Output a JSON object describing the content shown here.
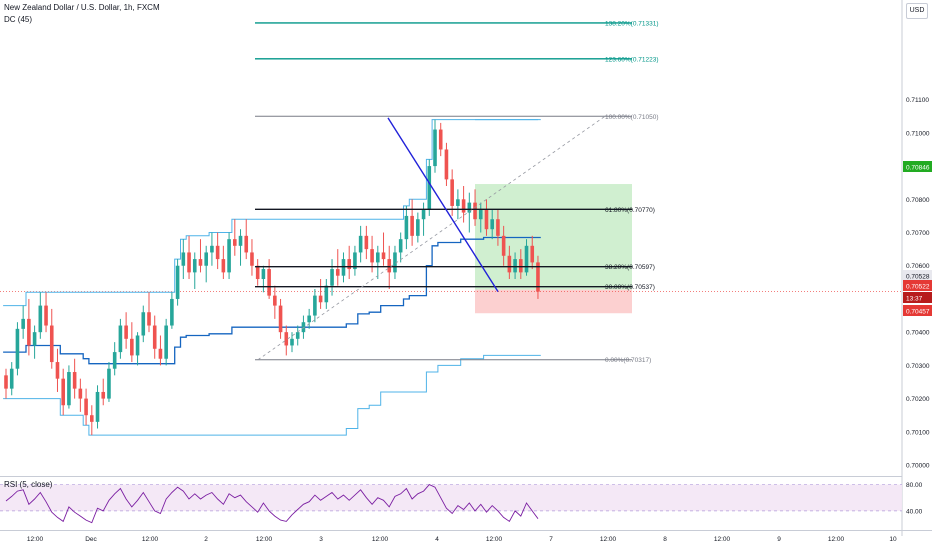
{
  "header": {
    "symbol_title": "New Zealand Dollar / U.S. Dollar, 1h, FXCM",
    "indicator": "DC (45)",
    "currency_button": "USD"
  },
  "rsi_panel": {
    "label": "RSI (5, close)",
    "levels": [
      "80.00",
      "40.00"
    ]
  },
  "colors": {
    "up_candle": "#26a69a",
    "down_candle": "#ef5350",
    "donchian_upper": "#4fb3e8",
    "donchian_basis": "#1565c0",
    "trendline": "#2121d9",
    "fib_extension": "#009688",
    "target_zone": "#c8ecc8",
    "stop_zone": "#fbc8c8",
    "rsi_line": "#7b1fa2",
    "rsi_band": "#f3e5f5"
  },
  "chart_data": {
    "type": "candlestick",
    "title": "New Zealand Dollar / U.S. Dollar, 1h, FXCM",
    "y_axis": {
      "ticks": [
        "0.71100",
        "0.71000",
        "0.70900",
        "0.70800",
        "0.70700",
        "0.70600",
        "0.70500",
        "0.70400",
        "0.70300",
        "0.70200",
        "0.70100",
        "0.70000"
      ],
      "range": [
        0.6997,
        0.714
      ]
    },
    "x_axis": {
      "ticks": [
        "12:00",
        "Dec",
        "12:00",
        "2",
        "12:00",
        "3",
        "12:00",
        "4",
        "12:00",
        "7",
        "12:00",
        "8",
        "12:00",
        "9",
        "12:00",
        "10"
      ]
    },
    "price_labels": [
      {
        "value": "0.70846",
        "color": "#22ab22"
      },
      {
        "value": "0.70528",
        "color": "#e8e8ee"
      },
      {
        "value": "0.70522",
        "color": "#e53935"
      },
      {
        "value": "13:37",
        "color": "#b71c1c"
      },
      {
        "value": "0.70457",
        "color": "#e53935"
      }
    ],
    "fib_levels": [
      {
        "label": "138.20%(0.71331)",
        "ratio": 1.382,
        "price": 0.71331
      },
      {
        "label": "123.60%(0.71223)",
        "ratio": 1.236,
        "price": 0.71223
      },
      {
        "label": "100.00%(0.71050)",
        "ratio": 1.0,
        "price": 0.7105
      },
      {
        "label": "61.80%(0.70770)",
        "ratio": 0.618,
        "price": 0.7077
      },
      {
        "label": "38.20%(0.70597)",
        "ratio": 0.382,
        "price": 0.70597
      },
      {
        "label": "30.00%(0.70537)",
        "ratio": 0.3,
        "price": 0.70537
      },
      {
        "label": "0.00%(0.70317)",
        "ratio": 0.0,
        "price": 0.70317
      }
    ],
    "position": {
      "entry": 0.70528,
      "target": 0.70846,
      "stop": 0.70457
    },
    "candles": [
      [
        0.7027,
        0.7029,
        0.702,
        0.7023
      ],
      [
        0.7023,
        0.7031,
        0.7021,
        0.7029
      ],
      [
        0.7029,
        0.7043,
        0.7027,
        0.7041
      ],
      [
        0.7041,
        0.7048,
        0.7038,
        0.7044
      ],
      [
        0.7044,
        0.705,
        0.7033,
        0.7036
      ],
      [
        0.7036,
        0.7042,
        0.7032,
        0.704
      ],
      [
        0.704,
        0.7052,
        0.7038,
        0.7048
      ],
      [
        0.7048,
        0.7052,
        0.704,
        0.7042
      ],
      [
        0.7042,
        0.7047,
        0.7029,
        0.7031
      ],
      [
        0.7031,
        0.7035,
        0.7022,
        0.7026
      ],
      [
        0.7026,
        0.7029,
        0.7015,
        0.7018
      ],
      [
        0.7018,
        0.703,
        0.7017,
        0.7028
      ],
      [
        0.7028,
        0.7032,
        0.702,
        0.7023
      ],
      [
        0.7023,
        0.7026,
        0.7016,
        0.702
      ],
      [
        0.702,
        0.7023,
        0.7012,
        0.7015
      ],
      [
        0.7015,
        0.7018,
        0.7009,
        0.7013
      ],
      [
        0.7013,
        0.7024,
        0.7011,
        0.7022
      ],
      [
        0.7022,
        0.7026,
        0.7018,
        0.702
      ],
      [
        0.702,
        0.7031,
        0.7019,
        0.7029
      ],
      [
        0.7029,
        0.7037,
        0.7027,
        0.7034
      ],
      [
        0.7034,
        0.7044,
        0.7032,
        0.7042
      ],
      [
        0.7042,
        0.7046,
        0.7035,
        0.7038
      ],
      [
        0.7038,
        0.7043,
        0.7031,
        0.7033
      ],
      [
        0.7033,
        0.704,
        0.703,
        0.7039
      ],
      [
        0.7039,
        0.7048,
        0.7037,
        0.7046
      ],
      [
        0.7046,
        0.7052,
        0.704,
        0.7042
      ],
      [
        0.7042,
        0.7045,
        0.7032,
        0.7035
      ],
      [
        0.7035,
        0.7039,
        0.703,
        0.7032
      ],
      [
        0.7032,
        0.7044,
        0.703,
        0.7042
      ],
      [
        0.7042,
        0.7052,
        0.7041,
        0.705
      ],
      [
        0.705,
        0.7062,
        0.7048,
        0.706
      ],
      [
        0.706,
        0.7068,
        0.7056,
        0.7064
      ],
      [
        0.7064,
        0.7069,
        0.7056,
        0.7058
      ],
      [
        0.7058,
        0.7064,
        0.7053,
        0.7062
      ],
      [
        0.7062,
        0.7068,
        0.7058,
        0.706
      ],
      [
        0.706,
        0.7066,
        0.7055,
        0.7064
      ],
      [
        0.7064,
        0.707,
        0.706,
        0.7066
      ],
      [
        0.7066,
        0.707,
        0.7059,
        0.7062
      ],
      [
        0.7062,
        0.7066,
        0.7056,
        0.7058
      ],
      [
        0.7058,
        0.707,
        0.7056,
        0.7068
      ],
      [
        0.7068,
        0.7074,
        0.7063,
        0.7066
      ],
      [
        0.7066,
        0.7071,
        0.706,
        0.7069
      ],
      [
        0.7069,
        0.7074,
        0.7062,
        0.7064
      ],
      [
        0.7064,
        0.7068,
        0.7057,
        0.706
      ],
      [
        0.706,
        0.7062,
        0.7054,
        0.7056
      ],
      [
        0.7056,
        0.706,
        0.7052,
        0.7059
      ],
      [
        0.7059,
        0.7062,
        0.705,
        0.7051
      ],
      [
        0.7051,
        0.7054,
        0.7044,
        0.7048
      ],
      [
        0.7048,
        0.705,
        0.7038,
        0.704
      ],
      [
        0.704,
        0.7042,
        0.7033,
        0.7036
      ],
      [
        0.7036,
        0.704,
        0.7034,
        0.7038
      ],
      [
        0.7038,
        0.7042,
        0.7036,
        0.704
      ],
      [
        0.704,
        0.7045,
        0.7038,
        0.7043
      ],
      [
        0.7043,
        0.7047,
        0.7041,
        0.7045
      ],
      [
        0.7045,
        0.7053,
        0.7043,
        0.7051
      ],
      [
        0.7051,
        0.7056,
        0.7047,
        0.7049
      ],
      [
        0.7049,
        0.7056,
        0.7047,
        0.7054
      ],
      [
        0.7054,
        0.7062,
        0.7051,
        0.7059
      ],
      [
        0.7059,
        0.7065,
        0.7054,
        0.7057
      ],
      [
        0.7057,
        0.7064,
        0.7055,
        0.7062
      ],
      [
        0.7062,
        0.7066,
        0.7056,
        0.7059
      ],
      [
        0.7059,
        0.7066,
        0.7057,
        0.7064
      ],
      [
        0.7064,
        0.7072,
        0.7061,
        0.7069
      ],
      [
        0.7069,
        0.7072,
        0.7062,
        0.7065
      ],
      [
        0.7065,
        0.7069,
        0.7058,
        0.7061
      ],
      [
        0.7061,
        0.7066,
        0.7056,
        0.7064
      ],
      [
        0.7064,
        0.707,
        0.706,
        0.7062
      ],
      [
        0.7062,
        0.7066,
        0.7053,
        0.7058
      ],
      [
        0.7058,
        0.7066,
        0.7056,
        0.7064
      ],
      [
        0.7064,
        0.707,
        0.7061,
        0.7068
      ],
      [
        0.7068,
        0.7078,
        0.7065,
        0.7075
      ],
      [
        0.7075,
        0.708,
        0.7066,
        0.7069
      ],
      [
        0.7069,
        0.7076,
        0.7067,
        0.7074
      ],
      [
        0.7074,
        0.7079,
        0.7069,
        0.7077
      ],
      [
        0.7077,
        0.7092,
        0.7075,
        0.709
      ],
      [
        0.709,
        0.7104,
        0.7088,
        0.7101
      ],
      [
        0.7101,
        0.7103,
        0.7093,
        0.7095
      ],
      [
        0.7095,
        0.7097,
        0.7084,
        0.7086
      ],
      [
        0.7086,
        0.7089,
        0.7075,
        0.7078
      ],
      [
        0.7078,
        0.7083,
        0.7074,
        0.708
      ],
      [
        0.708,
        0.7084,
        0.7073,
        0.7076
      ],
      [
        0.7076,
        0.7082,
        0.707,
        0.7079
      ],
      [
        0.7079,
        0.7083,
        0.7072,
        0.7074
      ],
      [
        0.7074,
        0.7079,
        0.707,
        0.7077
      ],
      [
        0.7077,
        0.708,
        0.7069,
        0.7071
      ],
      [
        0.7071,
        0.7077,
        0.7068,
        0.7074
      ],
      [
        0.7074,
        0.7077,
        0.7066,
        0.7069
      ],
      [
        0.7069,
        0.7072,
        0.706,
        0.7063
      ],
      [
        0.7063,
        0.7066,
        0.7056,
        0.7058
      ],
      [
        0.7058,
        0.7064,
        0.7056,
        0.7062
      ],
      [
        0.7062,
        0.7065,
        0.7056,
        0.7058
      ],
      [
        0.7058,
        0.7068,
        0.7057,
        0.7066
      ],
      [
        0.7066,
        0.7069,
        0.7059,
        0.7061
      ],
      [
        0.7061,
        0.7063,
        0.705,
        0.70522
      ]
    ],
    "donchian_upper": [
      0.7048,
      0.7048,
      0.7048,
      0.7048,
      0.7052,
      0.7052,
      0.7052,
      0.7052,
      0.7052,
      0.7052,
      0.7052,
      0.7052,
      0.7052,
      0.7052,
      0.7052,
      0.7052,
      0.7052,
      0.7052,
      0.7052,
      0.7052,
      0.7052,
      0.7052,
      0.7052,
      0.7052,
      0.7052,
      0.7052,
      0.7052,
      0.7052,
      0.7052,
      0.7052,
      0.7062,
      0.7068,
      0.7069,
      0.7069,
      0.7069,
      0.7069,
      0.707,
      0.707,
      0.707,
      0.707,
      0.7074,
      0.7074,
      0.7074,
      0.7074,
      0.7074,
      0.7074,
      0.7074,
      0.7074,
      0.7074,
      0.7074,
      0.7074,
      0.7074,
      0.7074,
      0.7074,
      0.7074,
      0.7074,
      0.7074,
      0.7074,
      0.7074,
      0.7074,
      0.7074,
      0.7074,
      0.7074,
      0.7074,
      0.7074,
      0.7074,
      0.7074,
      0.7074,
      0.7074,
      0.7074,
      0.7078,
      0.708,
      0.708,
      0.708,
      0.7092,
      0.7104,
      0.7104,
      0.7104,
      0.7104,
      0.7104,
      0.7104,
      0.7104,
      0.7104,
      0.7104,
      0.7104,
      0.7104,
      0.7104,
      0.7104,
      0.7104,
      0.7104,
      0.7104,
      0.7104,
      0.7104,
      0.7104
    ],
    "donchian_lower": [
      0.702,
      0.702,
      0.702,
      0.702,
      0.702,
      0.702,
      0.702,
      0.702,
      0.702,
      0.702,
      0.7015,
      0.7015,
      0.7015,
      0.7015,
      0.7012,
      0.7009,
      0.7009,
      0.7009,
      0.7009,
      0.7009,
      0.7009,
      0.7009,
      0.7009,
      0.7009,
      0.7009,
      0.7009,
      0.7009,
      0.7009,
      0.7009,
      0.7009,
      0.7009,
      0.7009,
      0.7009,
      0.7009,
      0.7009,
      0.7009,
      0.7009,
      0.7009,
      0.7009,
      0.7009,
      0.7009,
      0.7009,
      0.7009,
      0.7009,
      0.7009,
      0.7009,
      0.7009,
      0.7009,
      0.7009,
      0.7009,
      0.7009,
      0.7009,
      0.7009,
      0.7009,
      0.7009,
      0.7009,
      0.7009,
      0.7009,
      0.7009,
      0.7009,
      0.7011,
      0.7011,
      0.7017,
      0.7017,
      0.7018,
      0.7018,
      0.7022,
      0.7022,
      0.7022,
      0.7022,
      0.7022,
      0.7022,
      0.7022,
      0.7022,
      0.7028,
      0.7028,
      0.703,
      0.703,
      0.703,
      0.703,
      0.7032,
      0.7032,
      0.7032,
      0.7032,
      0.7033,
      0.7033,
      0.7033,
      0.7033,
      0.7033,
      0.7033,
      0.7033,
      0.7033,
      0.7033,
      0.7033
    ],
    "rsi_values": [
      55,
      62,
      70,
      72,
      50,
      58,
      68,
      54,
      38,
      30,
      24,
      46,
      38,
      32,
      26,
      22,
      44,
      40,
      56,
      66,
      74,
      58,
      46,
      56,
      68,
      54,
      40,
      36,
      58,
      68,
      76,
      70,
      58,
      66,
      58,
      64,
      68,
      58,
      50,
      66,
      60,
      64,
      54,
      46,
      38,
      52,
      40,
      32,
      26,
      24,
      34,
      42,
      50,
      54,
      64,
      56,
      62,
      68,
      58,
      64,
      56,
      64,
      72,
      60,
      50,
      60,
      56,
      46,
      62,
      66,
      74,
      58,
      66,
      70,
      80,
      76,
      60,
      44,
      36,
      48,
      42,
      52,
      40,
      50,
      38,
      48,
      40,
      30,
      24,
      40,
      32,
      52,
      40,
      28
    ]
  }
}
